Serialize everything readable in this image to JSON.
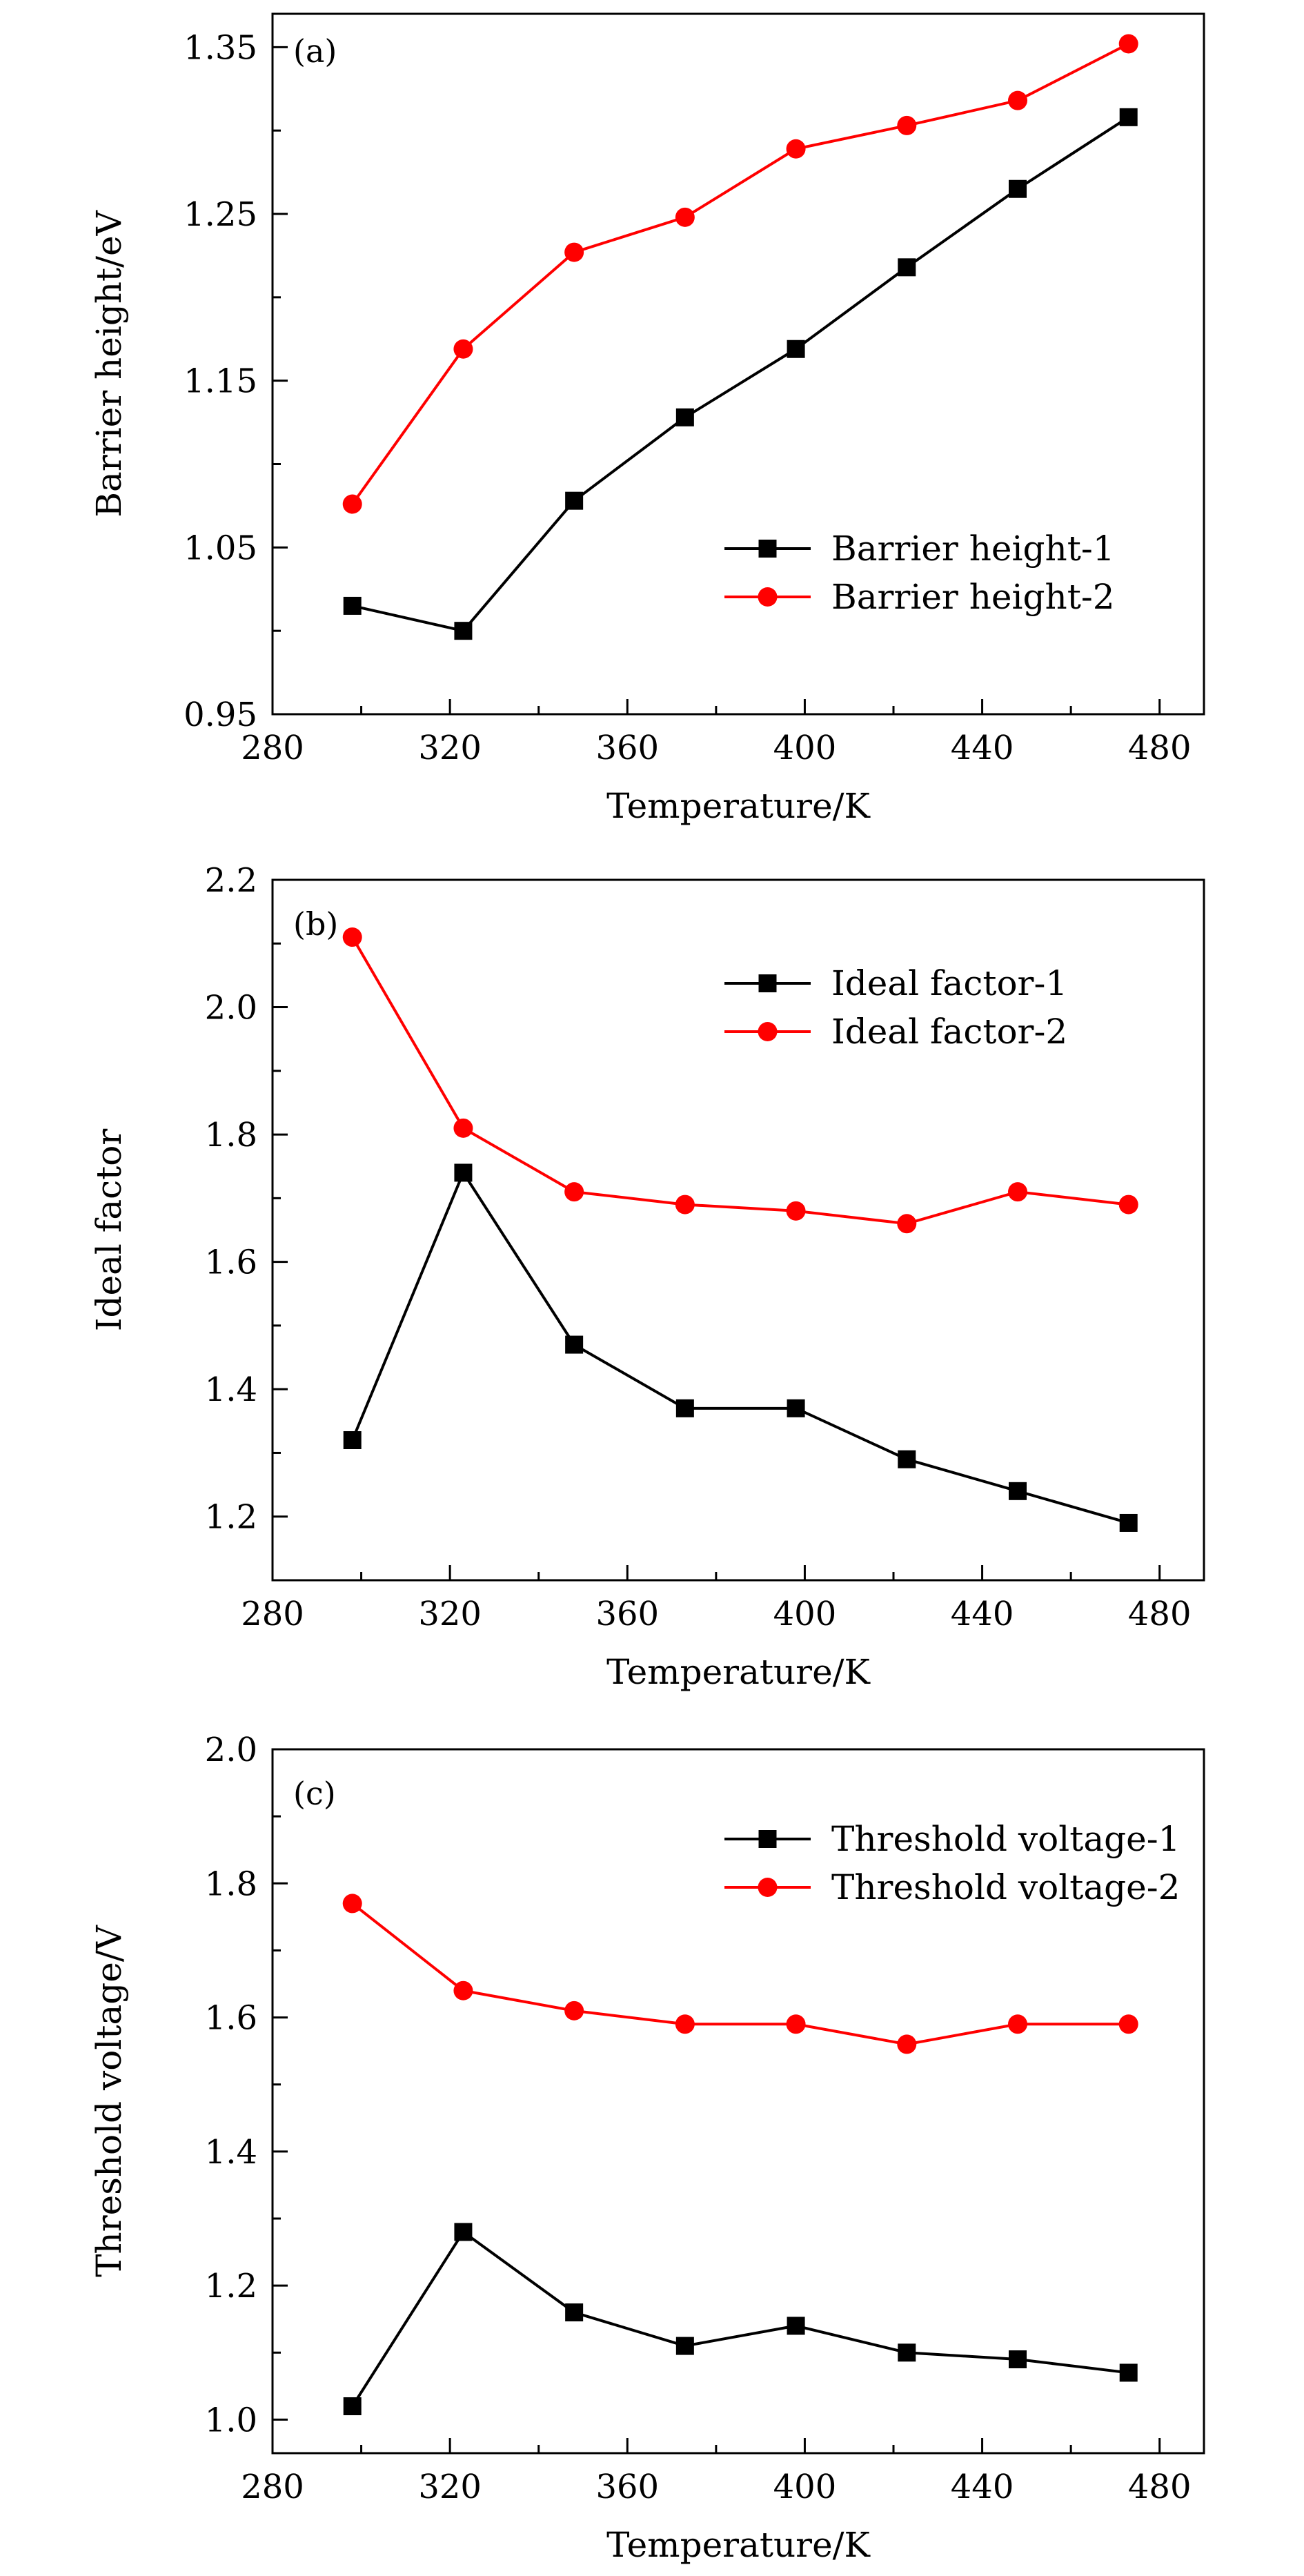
{
  "chart_data": [
    {
      "type": "line",
      "panel_label": "(a)",
      "xlabel": "Temperature/K",
      "ylabel": "Barrier height/eV",
      "xlim": [
        280,
        490
      ],
      "ylim": [
        0.95,
        1.37
      ],
      "xticks": [
        280,
        320,
        360,
        400,
        440,
        480
      ],
      "xtick_labels": [
        "280",
        "320",
        "360",
        "400",
        "440",
        "480"
      ],
      "yticks": [
        0.95,
        1.05,
        1.15,
        1.25,
        1.35
      ],
      "ytick_labels": [
        "0.95",
        "1.05",
        "1.15",
        "1.25",
        "1.35"
      ],
      "x": [
        298,
        323,
        348,
        373,
        398,
        423,
        448,
        473
      ],
      "series": [
        {
          "name": "Barrier height-1",
          "color": "#000000",
          "marker": "square",
          "values": [
            1.015,
            1.0,
            1.078,
            1.128,
            1.169,
            1.218,
            1.265,
            1.308
          ]
        },
        {
          "name": "Barrier height-2",
          "color": "#ff0000",
          "marker": "circle",
          "values": [
            1.076,
            1.169,
            1.227,
            1.248,
            1.289,
            1.303,
            1.318,
            1.352
          ]
        }
      ],
      "legend_position": "lower-right",
      "grid": false
    },
    {
      "type": "line",
      "panel_label": "(b)",
      "xlabel": "Temperature/K",
      "ylabel": "Ideal factor",
      "xlim": [
        280,
        490
      ],
      "ylim": [
        1.1,
        2.2
      ],
      "xticks": [
        280,
        320,
        360,
        400,
        440,
        480
      ],
      "xtick_labels": [
        "280",
        "320",
        "360",
        "400",
        "440",
        "480"
      ],
      "yticks": [
        1.2,
        1.4,
        1.6,
        1.8,
        2.0,
        2.2
      ],
      "ytick_labels": [
        "1.2",
        "1.4",
        "1.6",
        "1.8",
        "2.0",
        "2.2"
      ],
      "x": [
        298,
        323,
        348,
        373,
        398,
        423,
        448,
        473
      ],
      "series": [
        {
          "name": "Ideal factor-1",
          "color": "#000000",
          "marker": "square",
          "values": [
            1.32,
            1.74,
            1.47,
            1.37,
            1.37,
            1.29,
            1.24,
            1.19
          ]
        },
        {
          "name": "Ideal factor-2",
          "color": "#ff0000",
          "marker": "circle",
          "values": [
            2.11,
            1.81,
            1.71,
            1.69,
            1.68,
            1.66,
            1.71,
            1.69
          ]
        }
      ],
      "legend_position": "upper-right",
      "grid": false
    },
    {
      "type": "line",
      "panel_label": "(c)",
      "xlabel": "Temperature/K",
      "ylabel": "Threshold voltage/V",
      "xlim": [
        280,
        490
      ],
      "ylim": [
        0.95,
        2.0
      ],
      "xticks": [
        280,
        320,
        360,
        400,
        440,
        480
      ],
      "xtick_labels": [
        "280",
        "320",
        "360",
        "400",
        "440",
        "480"
      ],
      "yticks": [
        1.0,
        1.2,
        1.4,
        1.6,
        1.8,
        2.0
      ],
      "ytick_labels": [
        "1.0",
        "1.2",
        "1.4",
        "1.6",
        "1.8",
        "2.0"
      ],
      "x": [
        298,
        323,
        348,
        373,
        398,
        423,
        448,
        473
      ],
      "series": [
        {
          "name": "Threshold voltage-1",
          "color": "#000000",
          "marker": "square",
          "values": [
            1.02,
            1.28,
            1.16,
            1.11,
            1.14,
            1.1,
            1.09,
            1.07
          ]
        },
        {
          "name": "Threshold voltage-2",
          "color": "#ff0000",
          "marker": "circle",
          "values": [
            1.77,
            1.64,
            1.61,
            1.59,
            1.59,
            1.56,
            1.59,
            1.59
          ]
        }
      ],
      "legend_position": "upper-right",
      "grid": false
    }
  ]
}
